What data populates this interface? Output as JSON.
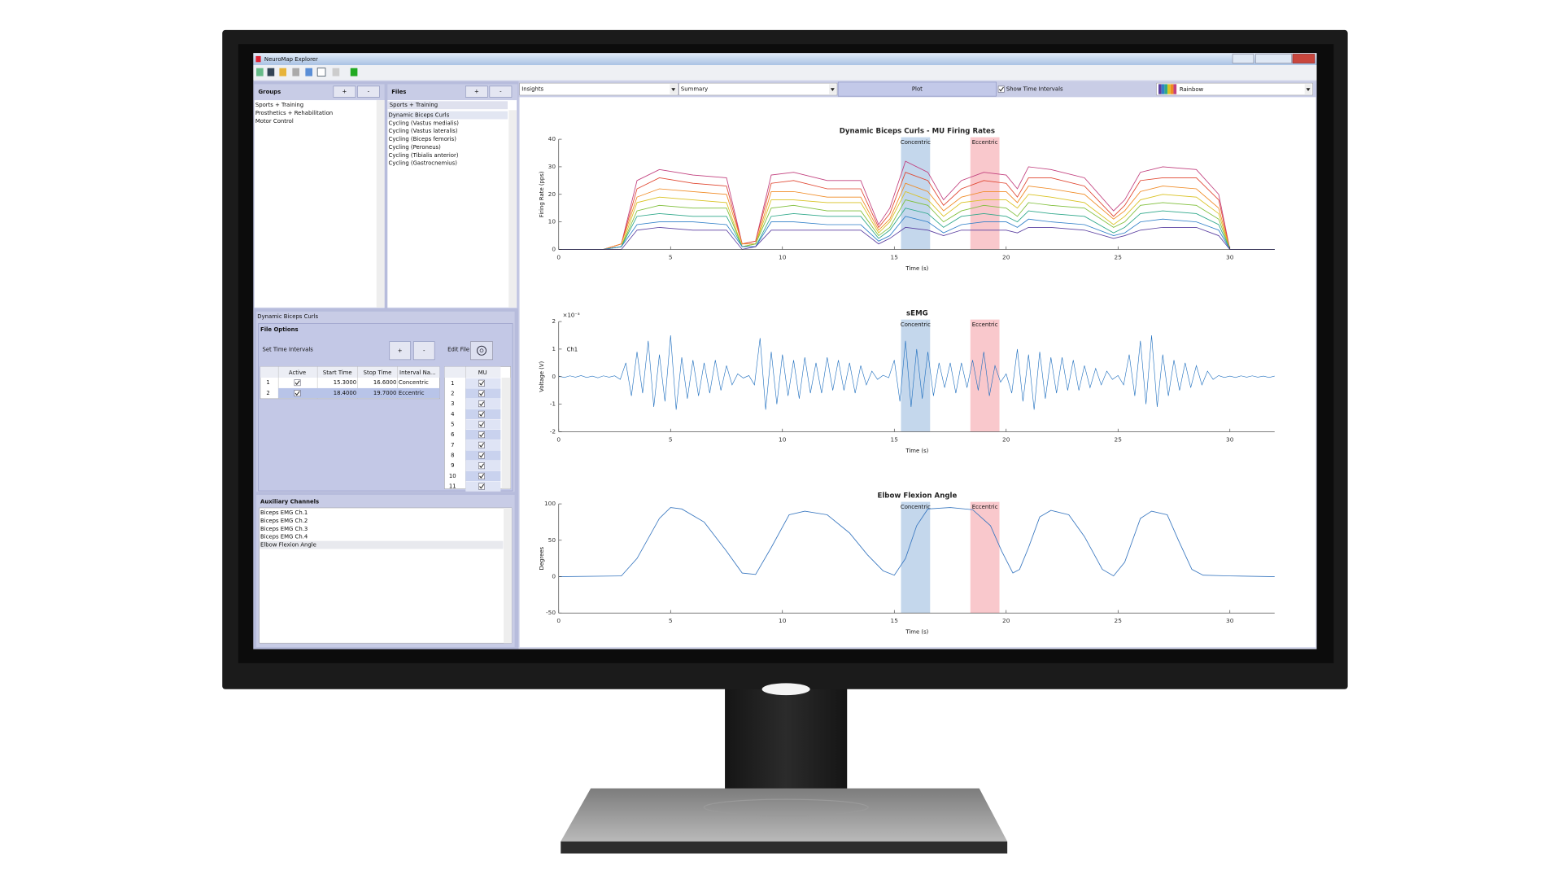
{
  "window": {
    "title": "NeuroMap Explorer"
  },
  "groups": {
    "title": "Groups",
    "add": "+",
    "remove": "-",
    "items": [
      "Sports + Training",
      "Prosthetics + Rehabilitation",
      "Motor Control"
    ]
  },
  "files": {
    "title": "Files",
    "add": "+",
    "remove": "-",
    "group": "Sports + Training",
    "selected": 0,
    "items": [
      "Dynamic Biceps Curls",
      "Cycling (Vastus medialis)",
      "Cycling (Vastus lateralis)",
      "Cycling (Biceps femoris)",
      "Cycling (Peroneus)",
      "Cycling (Tibialis anterior)",
      "Cycling (Gastrocnemius)"
    ]
  },
  "file_panel": {
    "file": "Dynamic Biceps Curls",
    "title": "File Options",
    "set_intervals": "Set Time Intervals",
    "add": "+",
    "remove": "-",
    "edit": "Edit File",
    "intervals_table": {
      "columns": [
        "Active",
        "Start Time",
        "Stop Time",
        "Interval Na..."
      ],
      "selected": 1,
      "rows": [
        {
          "index": "1",
          "active": true,
          "start": "15.3000",
          "stop": "16.6000",
          "name": "Concentric"
        },
        {
          "index": "2",
          "active": true,
          "start": "18.4000",
          "stop": "19.7000",
          "name": "Eccentric"
        }
      ]
    },
    "mu_table": {
      "column": "MU",
      "rows": [
        {
          "index": "1",
          "active": true
        },
        {
          "index": "2",
          "active": true
        },
        {
          "index": "3",
          "active": true
        },
        {
          "index": "4",
          "active": true
        },
        {
          "index": "5",
          "active": true
        },
        {
          "index": "6",
          "active": true
        },
        {
          "index": "7",
          "active": true
        },
        {
          "index": "8",
          "active": true
        },
        {
          "index": "9",
          "active": true
        },
        {
          "index": "10",
          "active": true
        },
        {
          "index": "11",
          "active": true
        }
      ]
    }
  },
  "auxiliary": {
    "title": "Auxiliary Channels",
    "selected": 4,
    "items": [
      "Biceps EMG Ch.1",
      "Biceps EMG Ch.2",
      "Biceps EMG Ch.3",
      "Biceps EMG Ch.4",
      "Elbow Flexion Angle"
    ]
  },
  "toolbar": {
    "view": "Insights",
    "mode": "Summary",
    "plot": "Plot",
    "show_intervals": {
      "label": "Show Time Intervals",
      "checked": true
    },
    "colormap": "Rainbow"
  },
  "chart_data": [
    {
      "type": "line",
      "title": "Dynamic Biceps Curls - MU Firing Rates",
      "x_label": "Time (s)",
      "y_label": "Firing Rate (pps)",
      "x": [
        0,
        2,
        2.8,
        3.5,
        4.5,
        6,
        7.5,
        8.2,
        8.8,
        9.5,
        10.5,
        12,
        13.5,
        14.3,
        14.8,
        15.5,
        16.5,
        17.2,
        18,
        19,
        20,
        20.5,
        21,
        22,
        23.5,
        24.8,
        25.3,
        26,
        27,
        28.5,
        29.5,
        30,
        32
      ],
      "series": [
        {
          "color": "#c2407e",
          "values": [
            0,
            0,
            2,
            25,
            29,
            27,
            26,
            2,
            3,
            27,
            28,
            25,
            25,
            9,
            15,
            32,
            28,
            18,
            25,
            28,
            27,
            22,
            30,
            29,
            26,
            14,
            18,
            28,
            30,
            29,
            20,
            0,
            0
          ]
        },
        {
          "color": "#e0452f",
          "values": [
            0,
            0,
            2,
            22,
            26,
            24,
            23,
            2,
            3,
            24,
            25,
            22,
            22,
            8,
            13,
            28,
            25,
            16,
            22,
            25,
            24,
            19,
            26,
            26,
            23,
            12,
            16,
            25,
            26,
            26,
            18,
            0,
            0
          ]
        },
        {
          "color": "#f08a24",
          "values": [
            0,
            0,
            2,
            19,
            22,
            21,
            20,
            2,
            2,
            21,
            21,
            19,
            19,
            7,
            11,
            24,
            21,
            14,
            19,
            21,
            21,
            17,
            23,
            22,
            20,
            11,
            14,
            21,
            23,
            22,
            15,
            0,
            0
          ]
        },
        {
          "color": "#d9c222",
          "values": [
            0,
            0,
            1,
            17,
            19,
            18,
            17,
            1,
            2,
            18,
            18,
            17,
            17,
            6,
            10,
            21,
            18,
            12,
            17,
            18,
            18,
            15,
            20,
            19,
            17,
            9,
            12,
            18,
            20,
            19,
            13,
            0,
            0
          ]
        },
        {
          "color": "#7fbf3a",
          "values": [
            0,
            0,
            1,
            14,
            16,
            15,
            15,
            1,
            2,
            15,
            16,
            14,
            14,
            5,
            8,
            18,
            16,
            10,
            14,
            16,
            15,
            12,
            17,
            16,
            15,
            8,
            10,
            16,
            17,
            16,
            11,
            0,
            0
          ]
        },
        {
          "color": "#2fa88a",
          "values": [
            0,
            0,
            1,
            12,
            13,
            12,
            12,
            1,
            1,
            12,
            13,
            12,
            12,
            4,
            7,
            15,
            13,
            8,
            12,
            13,
            12,
            10,
            14,
            13,
            12,
            6,
            8,
            13,
            14,
            13,
            9,
            0,
            0
          ]
        },
        {
          "color": "#2f7fc8",
          "values": [
            0,
            0,
            1,
            9,
            10,
            10,
            9,
            1,
            1,
            10,
            10,
            9,
            9,
            3,
            5,
            12,
            10,
            6,
            9,
            10,
            10,
            8,
            11,
            10,
            9,
            5,
            6,
            10,
            11,
            10,
            7,
            0,
            0
          ]
        },
        {
          "color": "#5a3fa0",
          "values": [
            0,
            0,
            0,
            7,
            8,
            7,
            7,
            0,
            1,
            7,
            7,
            7,
            7,
            2,
            4,
            8,
            7,
            5,
            7,
            7,
            7,
            6,
            8,
            8,
            7,
            4,
            5,
            7,
            8,
            8,
            5,
            0,
            0
          ]
        }
      ],
      "xlim": [
        0,
        32
      ],
      "xticks": [
        0,
        5,
        10,
        15,
        20,
        25,
        30
      ],
      "ylim": [
        0,
        40
      ],
      "yticks": [
        0,
        10,
        20,
        30,
        40
      ],
      "intervals": [
        {
          "label": "Concentric",
          "start": 15.3,
          "end": 16.6,
          "color": "#9dbde0"
        },
        {
          "label": "Eccentric",
          "start": 18.4,
          "end": 19.7,
          "color": "#f5a3aa"
        }
      ]
    },
    {
      "type": "line",
      "title": "sEMG",
      "x_label": "Time (s)",
      "y_label": "Voltage (V)",
      "y_exponent": "×10⁻³",
      "annotation": "Ch1",
      "x": [
        0,
        0.25,
        0.5,
        0.75,
        1,
        1.25,
        1.5,
        1.75,
        2,
        2.25,
        2.5,
        2.75,
        3,
        3.25,
        3.5,
        3.75,
        4,
        4.25,
        4.5,
        4.75,
        5,
        5.25,
        5.5,
        5.75,
        6,
        6.25,
        6.5,
        6.75,
        7,
        7.25,
        7.5,
        7.75,
        8,
        8.25,
        8.5,
        8.75,
        9,
        9.25,
        9.5,
        9.75,
        10,
        10.25,
        10.5,
        10.75,
        11,
        11.25,
        11.5,
        11.75,
        12,
        12.25,
        12.5,
        12.75,
        13,
        13.25,
        13.5,
        13.75,
        14,
        14.25,
        14.5,
        14.75,
        15,
        15.25,
        15.5,
        15.75,
        16,
        16.25,
        16.5,
        16.75,
        17,
        17.25,
        17.5,
        17.75,
        18,
        18.25,
        18.5,
        18.75,
        19,
        19.25,
        19.5,
        19.75,
        20,
        20.25,
        20.5,
        20.75,
        21,
        21.25,
        21.5,
        21.75,
        22,
        22.25,
        22.5,
        22.75,
        23,
        23.25,
        23.5,
        23.75,
        24,
        24.25,
        24.5,
        24.75,
        25,
        25.25,
        25.5,
        25.75,
        26,
        26.25,
        26.5,
        26.75,
        27,
        27.25,
        27.5,
        27.75,
        28,
        28.25,
        28.5,
        28.75,
        29,
        29.25,
        29.5,
        29.75,
        30,
        30.25,
        30.5,
        30.75,
        31,
        31.25,
        31.5,
        31.75,
        32
      ],
      "series": [
        {
          "color": "#1f6fbf",
          "values": [
            0.02,
            -0.03,
            0.03,
            -0.02,
            0.04,
            -0.03,
            0.02,
            -0.04,
            0.03,
            -0.02,
            0.03,
            -0.1,
            0.5,
            -0.7,
            0.9,
            -0.6,
            1.3,
            -1.1,
            0.8,
            -0.9,
            1.5,
            -1.2,
            0.7,
            -0.8,
            0.6,
            -0.7,
            0.5,
            -0.6,
            0.6,
            -0.5,
            0.4,
            -0.3,
            0.1,
            -0.05,
            0.04,
            -0.3,
            1.4,
            -1.2,
            0.9,
            -1.0,
            0.8,
            -0.7,
            0.6,
            -0.8,
            0.7,
            -0.6,
            0.5,
            -0.6,
            0.7,
            -0.5,
            0.6,
            -0.5,
            0.5,
            -0.6,
            0.4,
            -0.3,
            0.2,
            -0.1,
            0.05,
            -0.04,
            0.6,
            -0.9,
            1.3,
            -1.1,
            1.0,
            -0.8,
            0.9,
            -0.7,
            0.5,
            -0.4,
            0.5,
            -0.6,
            0.5,
            -0.4,
            0.6,
            -0.5,
            0.9,
            -0.7,
            0.4,
            -0.2,
            0.1,
            -0.6,
            1.0,
            -0.9,
            0.8,
            -1.2,
            0.9,
            -0.8,
            0.7,
            -0.6,
            0.7,
            -0.5,
            0.6,
            -0.5,
            0.4,
            -0.4,
            0.3,
            -0.3,
            0.2,
            -0.1,
            0.04,
            -0.3,
            0.8,
            -0.7,
            1.3,
            -1.0,
            1.5,
            -1.1,
            0.8,
            -0.7,
            0.6,
            -0.5,
            0.5,
            -0.4,
            0.4,
            -0.3,
            0.2,
            -0.1,
            0.04,
            -0.03,
            0.02,
            -0.03,
            0.03,
            -0.02,
            0.03,
            -0.02,
            0.02,
            -0.03,
            0.02
          ]
        }
      ],
      "xlim": [
        0,
        32
      ],
      "xticks": [
        0,
        5,
        10,
        15,
        20,
        25,
        30
      ],
      "ylim": [
        -2,
        2
      ],
      "yticks": [
        -2,
        -1,
        0,
        1,
        2
      ],
      "intervals": [
        {
          "label": "Concentric",
          "start": 15.3,
          "end": 16.6,
          "color": "#9dbde0"
        },
        {
          "label": "Eccentric",
          "start": 18.4,
          "end": 19.7,
          "color": "#f5a3aa"
        }
      ]
    },
    {
      "type": "line",
      "title": "Elbow Flexion Angle",
      "x_label": "Time (s)",
      "y_label": "Degrees",
      "x": [
        0,
        2.8,
        3.5,
        4.5,
        5,
        5.5,
        6.5,
        7.5,
        8.2,
        8.8,
        9.5,
        10.3,
        11,
        12,
        13,
        13.8,
        14.5,
        15,
        15.5,
        16,
        16.5,
        17.5,
        18.5,
        19.3,
        19.8,
        20.3,
        20.6,
        21,
        21.5,
        22,
        22.8,
        23.5,
        24.3,
        24.8,
        25.3,
        26,
        26.5,
        27.2,
        27.7,
        28.3,
        28.8,
        30,
        32
      ],
      "series": [
        {
          "color": "#3a78c0",
          "values": [
            0,
            1,
            25,
            80,
            95,
            93,
            75,
            35,
            5,
            3,
            40,
            85,
            90,
            85,
            60,
            30,
            8,
            2,
            25,
            70,
            93,
            95,
            92,
            70,
            35,
            5,
            10,
            40,
            82,
            91,
            85,
            55,
            10,
            1,
            20,
            80,
            90,
            85,
            50,
            10,
            2,
            1,
            0
          ]
        }
      ],
      "xlim": [
        0,
        32
      ],
      "xticks": [
        0,
        5,
        10,
        15,
        20,
        25,
        30
      ],
      "ylim": [
        -50,
        100
      ],
      "yticks": [
        -50,
        0,
        50,
        100
      ],
      "intervals": [
        {
          "label": "Concentric",
          "start": 15.3,
          "end": 16.6,
          "color": "#9dbde0"
        },
        {
          "label": "Eccentric",
          "start": 18.4,
          "end": 19.7,
          "color": "#f5a3aa"
        }
      ]
    }
  ]
}
